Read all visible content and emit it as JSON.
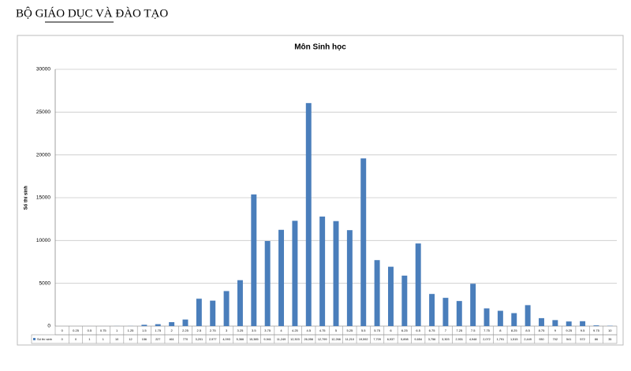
{
  "header": {
    "title": "BỘ GIÁO DỤC VÀ ĐÀO TẠO"
  },
  "chart_data": {
    "type": "bar",
    "title": "Môn Sinh học",
    "y_label": "Số thí sinh",
    "categories": [
      "0",
      "0.25",
      "0.5",
      "0.75",
      "1",
      "1.25",
      "1.5",
      "1.75",
      "2",
      "2.25",
      "2.5",
      "2.75",
      "3",
      "3.25",
      "3.5",
      "3.75",
      "4",
      "4.25",
      "4.5",
      "4.75",
      "5",
      "5.25",
      "5.5",
      "5.75",
      "6",
      "6.25",
      "6.5",
      "6.75",
      "7",
      "7.25",
      "7.5",
      "7.75",
      "8",
      "8.25",
      "8.5",
      "8.75",
      "9",
      "9.25",
      "9.5",
      "9.75",
      "10"
    ],
    "series": [
      {
        "name": "Số thí sinh",
        "color": "#4a7ebb",
        "values": [
          0,
          0,
          1,
          1,
          10,
          12,
          156,
          227,
          461,
          770,
          3201,
          2977,
          4093,
          5366,
          15385,
          9941,
          11249,
          12303,
          26056,
          12799,
          12266,
          11210,
          19592,
          7709,
          6937,
          5898,
          9654,
          3756,
          3303,
          2931,
          4948,
          2072,
          1791,
          1515,
          2449,
          930,
          702,
          541,
          572,
          86,
          35
        ],
        "value_labels": [
          "0",
          "0",
          "1",
          "1",
          "10",
          "12",
          "156",
          "227",
          "461",
          "770",
          "3,201",
          "2,977",
          "4,093",
          "5,366",
          "15,385",
          "9,941",
          "11,249",
          "12,303",
          "26,056",
          "12,799",
          "12,266",
          "11,210",
          "19,592",
          "7,709",
          "6,937",
          "5,898",
          "9,654",
          "3,756",
          "3,303",
          "2,931",
          "4,948",
          "2,072",
          "1,791",
          "1,515",
          "2,449",
          "930",
          "702",
          "541",
          "572",
          "86",
          "35"
        ]
      }
    ],
    "ylim": [
      0,
      30000
    ],
    "yticks": [
      0,
      5000,
      10000,
      15000,
      20000,
      25000,
      30000
    ],
    "grid": true
  }
}
